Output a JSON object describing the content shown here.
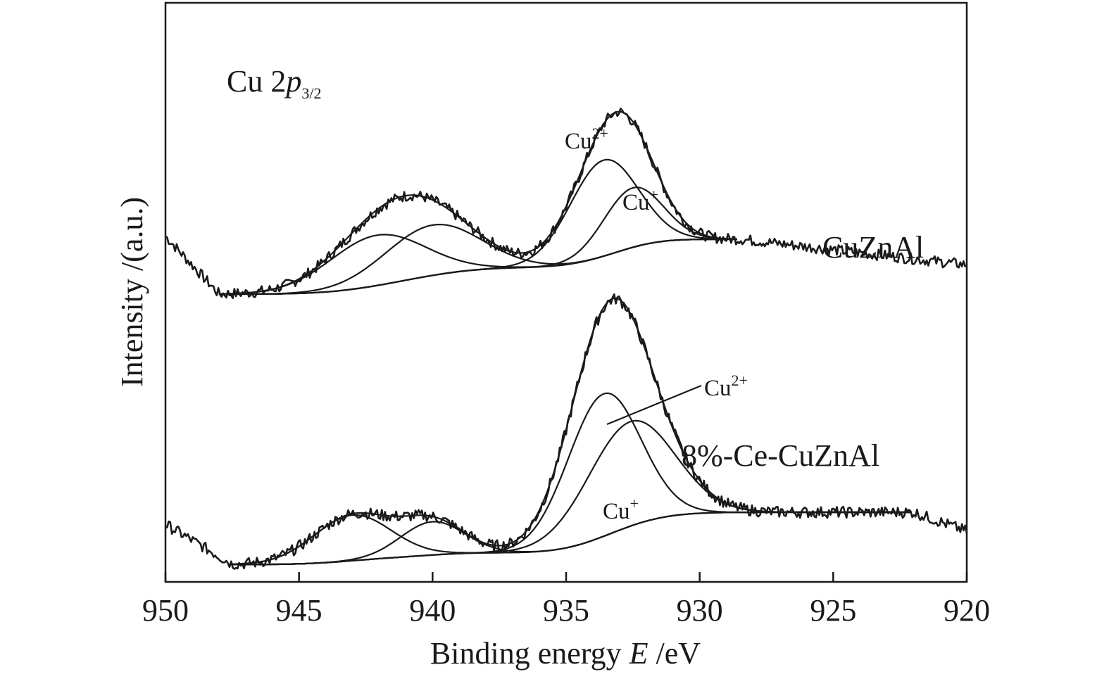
{
  "chart_data": {
    "type": "line",
    "title": "",
    "xlabel": "Binding energy E /eV",
    "xlabel_parts": {
      "pre": "Binding energy ",
      "var": "E",
      "post": " /eV"
    },
    "ylabel": "Intensity /(a.u.)",
    "xlim": [
      950,
      920
    ],
    "x_reversed": true,
    "xticks": [
      950,
      945,
      940,
      935,
      930,
      925,
      920
    ],
    "yticks_shown": false,
    "grid": false,
    "legend": "none",
    "panel_label": {
      "main": "Cu 2",
      "italic": "p",
      "sub": "3/2"
    },
    "samples": [
      {
        "name": "CuZnAl",
        "x_range": [
          950,
          920
        ],
        "raw_baseline_ends": [
          0.98,
          -0.28
        ],
        "fit_x_range": [
          948,
          928.5
        ],
        "shirley_background": {
          "high": 0.0,
          "low": -0.6
        },
        "components": [
          {
            "label": "Cu2+",
            "center": 933.6,
            "fwhm": 3.0,
            "height": 1.05
          },
          {
            "label": "Cu+",
            "center": 932.5,
            "fwhm": 2.6,
            "height": 0.65
          },
          {
            "label": "satellite",
            "center": 942.1,
            "fwhm": 4.2,
            "height": 0.55
          },
          {
            "label": "satellite",
            "center": 940.0,
            "fwhm": 4.2,
            "height": 0.55
          }
        ],
        "annotations": [
          {
            "text": "Cu",
            "sup": "2+",
            "anchor_x": 933.3
          },
          {
            "text": "Cu",
            "sup": "+",
            "anchor_x": 932.4
          }
        ]
      },
      {
        "name": "8%-Ce-CuZnAl",
        "x_range": [
          950,
          920
        ],
        "raw_baseline_ends": [
          0.5,
          -0.2
        ],
        "fit_x_range": [
          947.5,
          922
        ],
        "shirley_background": {
          "high": 0.0,
          "low": -0.55
        },
        "components": [
          {
            "label": "Cu2+",
            "center": 933.6,
            "fwhm": 3.2,
            "height": 1.5
          },
          {
            "label": "Cu+",
            "center": 932.6,
            "fwhm": 3.8,
            "height": 1.1
          },
          {
            "label": "satellite",
            "center": 943.0,
            "fwhm": 3.4,
            "height": 0.48
          },
          {
            "label": "satellite",
            "center": 940.0,
            "fwhm": 2.8,
            "height": 0.35
          }
        ],
        "annotations": [
          {
            "text": "Cu",
            "sup": "2+",
            "anchor_x": 933.5
          },
          {
            "text": "Cu",
            "sup": "+",
            "anchor_x": 932.6
          }
        ]
      }
    ]
  }
}
